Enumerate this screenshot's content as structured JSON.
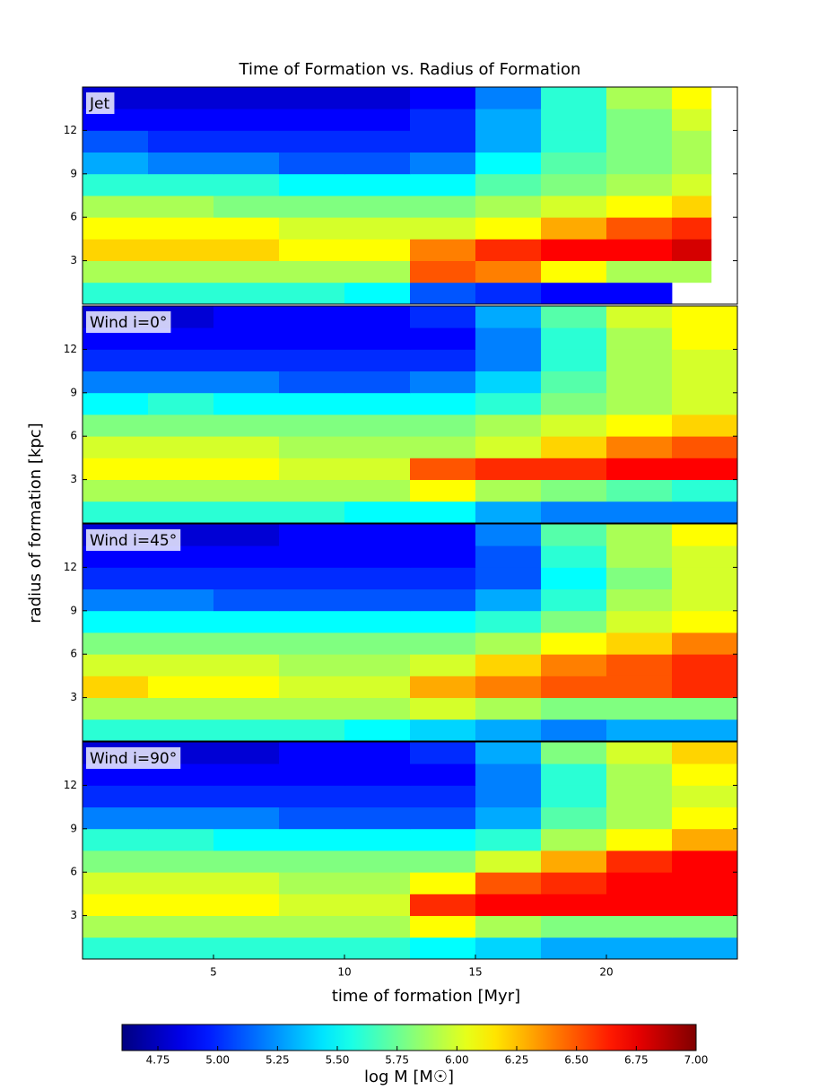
{
  "figure": {
    "title": "Time of Formation vs. Radius of Formation",
    "xlabel": "time of formation [Myr]",
    "ylabel": "radius of formation [kpc]",
    "colorbar": {
      "label": "log M [M☉]",
      "colormap": "jet",
      "clim": [
        4.6,
        7.0
      ],
      "ticks": [
        4.75,
        {
          "value": 5,
          "label": "5.00"
        },
        5.25,
        {
          "value": 5.5,
          "label": "5.50"
        },
        5.75,
        {
          "value": 6,
          "label": "6.00"
        },
        6.25,
        {
          "value": 6.5,
          "label": "6.50"
        },
        6.75,
        {
          "value": 7,
          "label": "7.00"
        }
      ]
    }
  },
  "chart_data": [
    {
      "type": "heatmap",
      "label": "Jet",
      "xlim": [
        0,
        25
      ],
      "ylim": [
        0,
        15
      ],
      "yticks": [
        3,
        6,
        9,
        12
      ],
      "x_bins": [
        0,
        2.5,
        5,
        7.5,
        10,
        12.5,
        15,
        17.5,
        20,
        22.5,
        24
      ],
      "y_bins": [
        0,
        1.5,
        3,
        4.5,
        6,
        7.5,
        9,
        10.5,
        12,
        13.5,
        15
      ],
      "values": [
        [
          5.6,
          5.6,
          5.6,
          5.6,
          5.5,
          5.1,
          5.0,
          4.9,
          4.9,
          null
        ],
        [
          5.9,
          5.9,
          5.9,
          5.9,
          5.9,
          6.5,
          6.4,
          6.1,
          5.9,
          5.9
        ],
        [
          6.2,
          6.2,
          6.2,
          6.1,
          6.1,
          6.4,
          6.6,
          6.7,
          6.7,
          6.8
        ],
        [
          6.1,
          6.1,
          6.1,
          6.0,
          6.0,
          6.0,
          6.1,
          6.3,
          6.5,
          6.6
        ],
        [
          5.9,
          5.9,
          5.8,
          5.8,
          5.8,
          5.8,
          5.9,
          6.0,
          6.1,
          6.2
        ],
        [
          5.6,
          5.6,
          5.6,
          5.5,
          5.5,
          5.5,
          5.7,
          5.8,
          5.9,
          6.0
        ],
        [
          5.3,
          5.2,
          5.2,
          5.1,
          5.1,
          5.2,
          5.5,
          5.7,
          5.8,
          5.9
        ],
        [
          5.1,
          5.0,
          5.0,
          5.0,
          5.0,
          5.0,
          5.3,
          5.6,
          5.8,
          5.9
        ],
        [
          4.9,
          4.9,
          4.9,
          4.9,
          4.9,
          5.0,
          5.3,
          5.6,
          5.8,
          6.0
        ],
        [
          4.8,
          4.8,
          4.8,
          4.8,
          4.8,
          4.9,
          5.2,
          5.6,
          5.9,
          6.1
        ]
      ]
    },
    {
      "type": "heatmap",
      "label": "Wind i=0°",
      "xlim": [
        0,
        25
      ],
      "ylim": [
        0,
        15
      ],
      "yticks": [
        3,
        6,
        9,
        12
      ],
      "x_bins": [
        0,
        2.5,
        5,
        7.5,
        10,
        12.5,
        15,
        17.5,
        20,
        22.5,
        25
      ],
      "y_bins": [
        0,
        1.5,
        3,
        4.5,
        6,
        7.5,
        9,
        10.5,
        12,
        13.5,
        15
      ],
      "values": [
        [
          5.6,
          5.6,
          5.6,
          5.6,
          5.5,
          5.5,
          5.3,
          5.2,
          5.2,
          5.2
        ],
        [
          5.9,
          5.9,
          5.9,
          5.9,
          5.9,
          6.1,
          5.9,
          5.8,
          5.7,
          5.6
        ],
        [
          6.1,
          6.1,
          6.1,
          6.0,
          6.0,
          6.5,
          6.6,
          6.6,
          6.7,
          6.7
        ],
        [
          6.0,
          6.0,
          6.0,
          5.9,
          5.9,
          5.9,
          6.0,
          6.2,
          6.4,
          6.5
        ],
        [
          5.8,
          5.8,
          5.8,
          5.8,
          5.8,
          5.8,
          5.9,
          6.0,
          6.1,
          6.2
        ],
        [
          5.5,
          5.6,
          5.5,
          5.5,
          5.5,
          5.5,
          5.6,
          5.8,
          5.9,
          6.0
        ],
        [
          5.2,
          5.2,
          5.2,
          5.1,
          5.1,
          5.2,
          5.4,
          5.7,
          5.9,
          6.0
        ],
        [
          5.0,
          5.0,
          5.0,
          5.0,
          5.0,
          5.0,
          5.2,
          5.6,
          5.9,
          6.0
        ],
        [
          4.9,
          4.9,
          4.9,
          4.9,
          4.9,
          4.9,
          5.2,
          5.6,
          5.9,
          6.1
        ],
        [
          4.8,
          4.8,
          4.9,
          4.9,
          4.9,
          5.0,
          5.3,
          5.7,
          6.0,
          6.1
        ]
      ]
    },
    {
      "type": "heatmap",
      "label": "Wind i=45°",
      "xlim": [
        0,
        25
      ],
      "ylim": [
        0,
        15
      ],
      "yticks": [
        3,
        6,
        9,
        12
      ],
      "x_bins": [
        0,
        2.5,
        5,
        7.5,
        10,
        12.5,
        15,
        17.5,
        20,
        22.5,
        25
      ],
      "y_bins": [
        0,
        1.5,
        3,
        4.5,
        6,
        7.5,
        9,
        10.5,
        12,
        13.5,
        15
      ],
      "values": [
        [
          5.6,
          5.6,
          5.6,
          5.6,
          5.5,
          5.4,
          5.3,
          5.2,
          5.3,
          5.3
        ],
        [
          5.9,
          5.9,
          5.9,
          5.9,
          5.9,
          6.0,
          5.9,
          5.8,
          5.8,
          5.8
        ],
        [
          6.2,
          6.1,
          6.1,
          6.0,
          6.0,
          6.3,
          6.4,
          6.5,
          6.5,
          6.6
        ],
        [
          6.0,
          6.0,
          6.0,
          5.9,
          5.9,
          6.0,
          6.2,
          6.4,
          6.5,
          6.6
        ],
        [
          5.8,
          5.8,
          5.8,
          5.8,
          5.8,
          5.8,
          5.9,
          6.1,
          6.2,
          6.4
        ],
        [
          5.5,
          5.5,
          5.5,
          5.5,
          5.5,
          5.5,
          5.6,
          5.8,
          6.0,
          6.1
        ],
        [
          5.2,
          5.2,
          5.1,
          5.1,
          5.1,
          5.1,
          5.3,
          5.6,
          5.9,
          6.0
        ],
        [
          5.0,
          5.0,
          5.0,
          5.0,
          5.0,
          5.0,
          5.1,
          5.5,
          5.8,
          6.0
        ],
        [
          4.9,
          4.9,
          4.9,
          4.9,
          4.9,
          4.9,
          5.1,
          5.6,
          5.9,
          6.0
        ],
        [
          4.8,
          4.8,
          4.8,
          4.9,
          4.9,
          4.9,
          5.2,
          5.7,
          5.9,
          6.1
        ]
      ]
    },
    {
      "type": "heatmap",
      "label": "Wind i=90°",
      "xlim": [
        0,
        25
      ],
      "ylim": [
        0,
        15
      ],
      "yticks": [
        3,
        6,
        9,
        12
      ],
      "xticks": [
        5,
        10,
        15,
        20
      ],
      "x_bins": [
        0,
        2.5,
        5,
        7.5,
        10,
        12.5,
        15,
        17.5,
        20,
        22.5,
        25
      ],
      "y_bins": [
        0,
        1.5,
        3,
        4.5,
        6,
        7.5,
        9,
        10.5,
        12,
        13.5,
        15
      ],
      "values": [
        [
          5.6,
          5.6,
          5.6,
          5.6,
          5.6,
          5.5,
          5.4,
          5.3,
          5.3,
          5.3
        ],
        [
          5.9,
          5.9,
          5.9,
          5.9,
          5.9,
          6.1,
          5.9,
          5.8,
          5.8,
          5.8
        ],
        [
          6.1,
          6.1,
          6.1,
          6.0,
          6.0,
          6.6,
          6.7,
          6.7,
          6.7,
          6.7
        ],
        [
          6.0,
          6.0,
          6.0,
          5.9,
          5.9,
          6.1,
          6.5,
          6.6,
          6.7,
          6.7
        ],
        [
          5.8,
          5.8,
          5.8,
          5.8,
          5.8,
          5.8,
          6.0,
          6.3,
          6.6,
          6.7
        ],
        [
          5.6,
          5.6,
          5.5,
          5.5,
          5.5,
          5.5,
          5.6,
          5.9,
          6.1,
          6.3
        ],
        [
          5.2,
          5.2,
          5.2,
          5.1,
          5.1,
          5.1,
          5.3,
          5.7,
          5.9,
          6.1
        ],
        [
          5.0,
          5.0,
          5.0,
          5.0,
          5.0,
          5.0,
          5.2,
          5.6,
          5.9,
          6.0
        ],
        [
          4.9,
          4.9,
          4.9,
          4.9,
          4.9,
          4.9,
          5.2,
          5.6,
          5.9,
          6.1
        ],
        [
          4.8,
          4.8,
          4.8,
          4.9,
          4.9,
          5.0,
          5.3,
          5.8,
          6.0,
          6.2
        ]
      ]
    }
  ]
}
